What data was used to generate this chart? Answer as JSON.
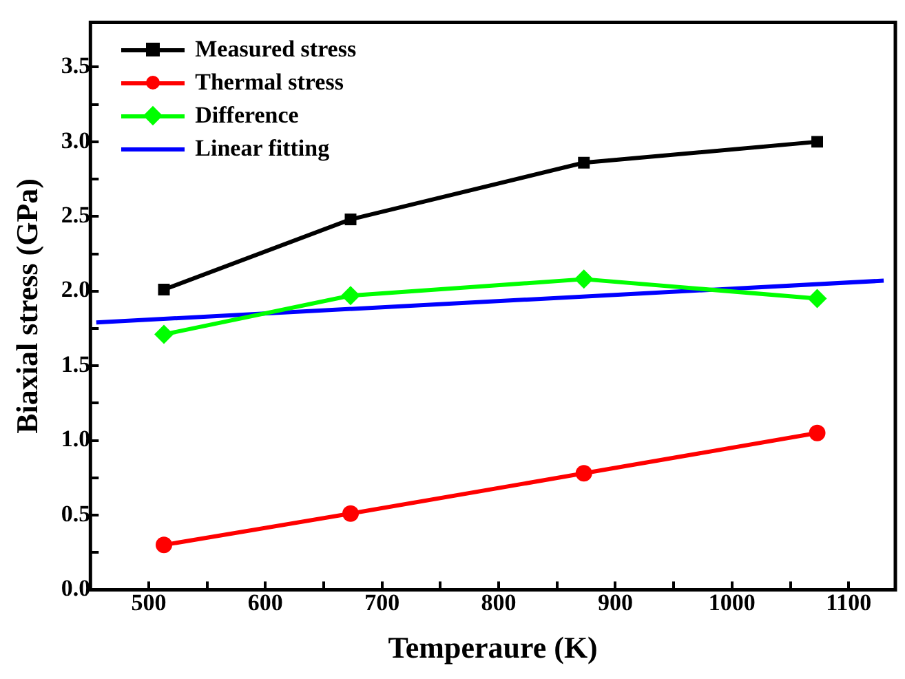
{
  "chart_data": {
    "type": "line",
    "xlabel": "Temperaure (K)",
    "ylabel": "Biaxial stress (GPa)",
    "x": [
      513,
      673,
      873,
      1073
    ],
    "series": [
      {
        "name": "Measured stress",
        "color": "#000000",
        "marker": "square",
        "values": [
          2.01,
          2.48,
          2.86,
          3.0
        ]
      },
      {
        "name": "Thermal stress",
        "color": "#ff0000",
        "marker": "circle",
        "values": [
          0.3,
          0.51,
          0.78,
          1.05
        ]
      },
      {
        "name": "Difference",
        "color": "#00ff00",
        "marker": "diamond",
        "values": [
          1.71,
          1.97,
          2.08,
          1.95
        ]
      },
      {
        "name": "Linear fitting",
        "color": "#0000ff",
        "marker": "none",
        "x": [
          455,
          1130
        ],
        "values": [
          1.79,
          2.07
        ]
      }
    ],
    "xlim": [
      450,
      1140
    ],
    "xticks": [
      500,
      {
        "value": 550,
        "label": null
      },
      600,
      {
        "value": 650,
        "label": null
      },
      700,
      {
        "value": 750,
        "label": null
      },
      800,
      {
        "value": 850,
        "label": null
      },
      900,
      {
        "value": 950,
        "label": null
      },
      1000,
      {
        "value": 1050,
        "label": null
      },
      1100
    ],
    "ylim": [
      0,
      3.8
    ],
    "yticks": [
      {
        "value": 0,
        "label": "0.0"
      },
      {
        "value": 0.25,
        "label": null
      },
      {
        "value": 0.5,
        "label": "0.5"
      },
      {
        "value": 0.75,
        "label": null
      },
      {
        "value": 1,
        "label": "1.0"
      },
      {
        "value": 1.25,
        "label": null
      },
      {
        "value": 1.5,
        "label": "1.5"
      },
      {
        "value": 1.75,
        "label": null
      },
      {
        "value": 2,
        "label": "2.0"
      },
      {
        "value": 2.25,
        "label": null
      },
      {
        "value": 2.5,
        "label": "2.5"
      },
      {
        "value": 2.75,
        "label": null
      },
      {
        "value": 3,
        "label": "3.0"
      },
      {
        "value": 3.25,
        "label": null
      },
      {
        "value": 3.5,
        "label": "3.5"
      }
    ],
    "grid": false,
    "legend": "top left",
    "line_style": "solid"
  }
}
